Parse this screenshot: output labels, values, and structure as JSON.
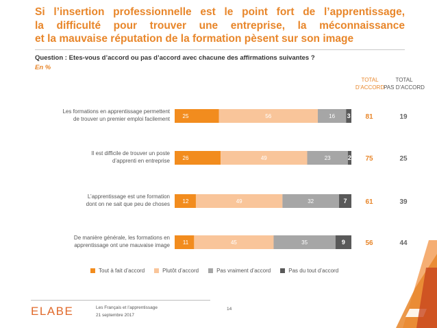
{
  "title_lines": [
    "Si l’insertion professionnelle est le point fort de l’apprentissage,",
    "la difficulté pour trouver une entreprise, la méconnaissance",
    "et la mauvaise réputation de la formation pèsent sur son image"
  ],
  "question": "Question : Etes-vous d’accord ou pas d’accord avec chacune des affirmations suivantes ?",
  "unit": "En %",
  "columns": {
    "total_agree": [
      "TOTAL",
      "D’ACCORD"
    ],
    "total_disagree": [
      "TOTAL",
      "PAS D’ACCORD"
    ]
  },
  "colors": {
    "tout_a_fait": "#f28c1e",
    "plutot": "#f9c59a",
    "pas_vraiment": "#a6a6a6",
    "pas_du_tout": "#595959",
    "accent": "#e8862a"
  },
  "chart_data": {
    "type": "bar",
    "orientation": "horizontal",
    "stacked": true,
    "categories": [
      [
        "Les formations en apprentissage permettent",
        "de trouver un premier emploi facilement"
      ],
      [
        "Il est difficile de trouver un poste",
        "d’apprenti en entreprise"
      ],
      [
        "L’apprentissage est une formation",
        "dont on ne sait que peu de choses"
      ],
      [
        "De manière générale, les formations en",
        "apprentissage ont une mauvaise image"
      ]
    ],
    "series": [
      {
        "name": "Tout à fait d’accord",
        "values": [
          25,
          26,
          12,
          11
        ]
      },
      {
        "name": "Plutôt d’accord",
        "values": [
          56,
          49,
          49,
          45
        ]
      },
      {
        "name": "Pas vraiment d’accord",
        "values": [
          16,
          23,
          32,
          35
        ]
      },
      {
        "name": "Pas du tout d’accord",
        "values": [
          3,
          2,
          7,
          9
        ]
      }
    ],
    "total_agree": [
      81,
      75,
      61,
      56
    ],
    "total_disagree": [
      19,
      25,
      39,
      44
    ],
    "xlim": [
      0,
      100
    ],
    "legend_position": "bottom"
  },
  "footer": {
    "logo": "ELABE",
    "line1": "Les Français et l’apprentissage",
    "line2": "21 septembre 2017",
    "page": "14"
  }
}
